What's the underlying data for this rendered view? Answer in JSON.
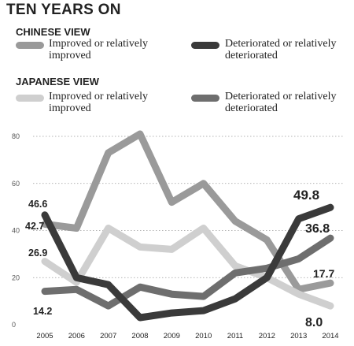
{
  "title": "TEN YEARS ON",
  "chinese_view": {
    "heading": "CHINESE VIEW",
    "improved_label": "Improved or relatively improved",
    "deteriorated_label": "Deteriorated or relatively deteriorated"
  },
  "japanese_view": {
    "heading": "JAPANESE VIEW",
    "improved_label": "Improved or relatively improved",
    "deteriorated_label": "Deteriorated or relatively deteriorated"
  },
  "colors": {
    "chinese_improved": "#9a9a9a",
    "chinese_deteriorated": "#3a3a3a",
    "japanese_improved": "#cfcfcf",
    "japanese_deteriorated": "#6e6e6e",
    "grid": "#9a9a9a"
  },
  "chart_data": {
    "type": "line",
    "title": "TEN YEARS ON",
    "x": [
      "2005",
      "2006",
      "2007",
      "2008",
      "2009",
      "2010",
      "2011",
      "2012",
      "2013",
      "2014"
    ],
    "ylim": [
      0,
      80
    ],
    "yticks": [
      "0",
      "20",
      "40",
      "60",
      "80"
    ],
    "grid": "horizontal dotted",
    "series": [
      {
        "key": "chinese_improved",
        "name": "Improved or relatively improved",
        "group": "CHINESE VIEW",
        "values": [
          42.7,
          41,
          73,
          81,
          52,
          60,
          44,
          36,
          15,
          17.7
        ]
      },
      {
        "key": "japanese_improved",
        "name": "Improved or relatively improved",
        "group": "JAPANESE VIEW",
        "values": [
          26.9,
          18,
          41,
          33,
          32,
          41,
          25,
          20,
          13,
          8.0
        ]
      },
      {
        "key": "japanese_deteriorated",
        "name": "Deteriorated or relatively deteriorated",
        "group": "JAPANESE VIEW",
        "values": [
          14.2,
          15,
          8,
          16,
          13,
          12,
          22,
          24,
          28,
          36.8
        ]
      },
      {
        "key": "chinese_deteriorated",
        "name": "Deteriorated or relatively deteriorated",
        "group": "CHINESE VIEW",
        "values": [
          46.6,
          20,
          17,
          3,
          5,
          6,
          11,
          20,
          45,
          49.8
        ]
      }
    ],
    "annotations": [
      {
        "series": "chinese_deteriorated",
        "index": 0,
        "text": "46.6"
      },
      {
        "series": "chinese_improved",
        "index": 0,
        "text": "42.7"
      },
      {
        "series": "japanese_improved",
        "index": 0,
        "text": "26.9"
      },
      {
        "series": "japanese_deteriorated",
        "index": 0,
        "text": "14.2"
      },
      {
        "series": "chinese_deteriorated",
        "index": 9,
        "text": "49.8"
      },
      {
        "series": "japanese_deteriorated",
        "index": 9,
        "text": "36.8"
      },
      {
        "series": "chinese_improved",
        "index": 9,
        "text": "17.7"
      },
      {
        "series": "japanese_improved",
        "index": 9,
        "text": "8.0"
      }
    ]
  }
}
